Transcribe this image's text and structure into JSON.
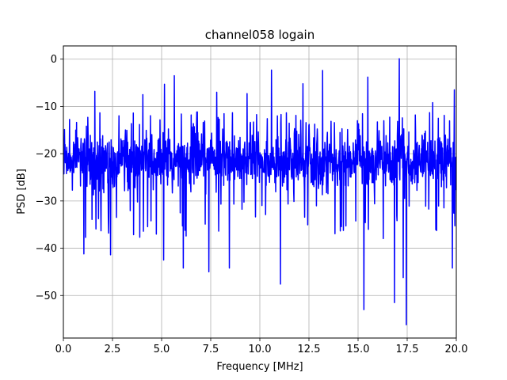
{
  "chart_data": {
    "type": "line",
    "title": "channel058 logain",
    "xlabel": "Frequency [MHz]",
    "ylabel": "PSD [dB]",
    "xlim": [
      0,
      20
    ],
    "ylim": [
      -59,
      2.8
    ],
    "xticks": [
      0.0,
      2.5,
      5.0,
      7.5,
      10.0,
      12.5,
      15.0,
      17.5,
      20.0
    ],
    "xtick_labels": [
      "0.0",
      "2.5",
      "5.0",
      "7.5",
      "10.0",
      "12.5",
      "15.0",
      "17.5",
      "20.0"
    ],
    "yticks": [
      0,
      -10,
      -20,
      -30,
      -40,
      -50
    ],
    "ytick_labels": [
      "0",
      "−10",
      "−20",
      "−30",
      "−40",
      "−50"
    ],
    "grid": true,
    "legend": "none",
    "series": [
      {
        "color": "#0000ff",
        "baseline_db": -21.5,
        "noise_band_db": [
          -30,
          -13
        ],
        "peaks": [
          {
            "x": 1.6,
            "y": -6.8
          },
          {
            "x": 4.05,
            "y": -7.5
          },
          {
            "x": 5.15,
            "y": -5.3
          },
          {
            "x": 5.65,
            "y": -3.5
          },
          {
            "x": 7.8,
            "y": -7.0
          },
          {
            "x": 9.35,
            "y": -7.3
          },
          {
            "x": 10.6,
            "y": -2.3
          },
          {
            "x": 12.2,
            "y": -5.2
          },
          {
            "x": 13.2,
            "y": -2.4
          },
          {
            "x": 15.5,
            "y": -3.8
          },
          {
            "x": 17.1,
            "y": 0.1
          },
          {
            "x": 18.8,
            "y": -9.2
          },
          {
            "x": 19.9,
            "y": -6.5
          }
        ],
        "dips": [
          {
            "x": 1.05,
            "y": -41.2
          },
          {
            "x": 2.4,
            "y": -41.4
          },
          {
            "x": 5.1,
            "y": -42.5
          },
          {
            "x": 6.1,
            "y": -44.2
          },
          {
            "x": 7.4,
            "y": -45.0
          },
          {
            "x": 8.45,
            "y": -44.2
          },
          {
            "x": 11.05,
            "y": -47.6
          },
          {
            "x": 15.3,
            "y": -53.0
          },
          {
            "x": 16.85,
            "y": -51.5
          },
          {
            "x": 17.3,
            "y": -46.2
          },
          {
            "x": 17.45,
            "y": -56.2
          },
          {
            "x": 19.8,
            "y": -44.2
          }
        ]
      }
    ]
  }
}
